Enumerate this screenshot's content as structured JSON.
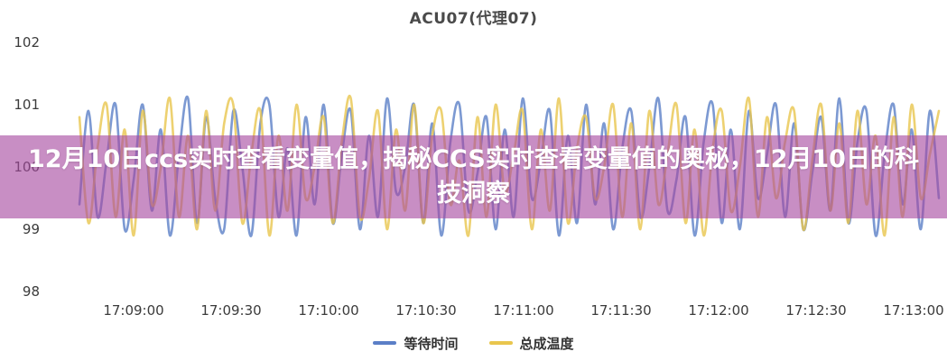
{
  "title": "ACU07(代理07)",
  "overlay": {
    "text": "12月10日ccs实时查看变量值，揭秘CCS实时查看变量值的奥秘，12月10日的科技洞察",
    "background": "rgba(167,73,160,0.62)",
    "text_color": "#ffffff"
  },
  "chart_data": {
    "type": "line",
    "title": "ACU07(代理07)",
    "xlabel": "",
    "ylabel": "",
    "x_ticks": [
      "17:09:00",
      "17:09:30",
      "17:10:00",
      "17:10:30",
      "17:11:00",
      "17:11:30",
      "17:12:00",
      "17:12:30",
      "17:13:00"
    ],
    "y_ticks": [
      "102",
      "101",
      "100",
      "99",
      "98"
    ],
    "ylim": [
      97.9,
      102.2
    ],
    "grid": false,
    "legend_position": "bottom-center",
    "series": [
      {
        "name": "等待时间",
        "color": "#5b7fc7",
        "values": [
          99.4,
          100.9,
          99.2,
          100.1,
          101.0,
          99.0,
          99.8,
          101.0,
          99.3,
          100.6,
          98.9,
          100.2,
          101.1,
          99.1,
          100.8,
          99.5,
          99.0,
          100.9,
          100.0,
          98.9,
          100.7,
          101.0,
          99.2,
          100.3,
          98.9,
          100.8,
          99.4,
          101.0,
          99.1,
          100.2,
          100.9,
          99.0,
          100.5,
          99.2,
          101.1,
          99.6,
          100.0,
          101.0,
          99.1,
          100.7,
          98.9,
          100.4,
          101.0,
          99.3,
          99.9,
          100.8,
          99.0,
          100.6,
          99.2,
          101.1,
          99.5,
          100.1,
          100.9,
          98.9,
          100.5,
          99.1,
          101.0,
          99.4,
          100.7,
          99.0,
          100.3,
          100.9,
          99.2,
          100.0,
          101.1,
          99.3,
          99.8,
          100.8,
          98.9,
          100.4,
          101.0,
          99.1,
          100.6,
          99.0,
          100.9,
          99.5,
          100.2,
          101.0,
          99.2,
          100.7,
          99.0,
          99.9,
          100.8,
          99.3,
          101.1,
          99.1,
          100.4,
          100.9,
          98.9,
          100.2,
          101.0,
          99.4,
          100.6,
          99.0,
          100.9,
          99.5
        ]
      },
      {
        "name": "总成温度",
        "color": "#e9c64d",
        "values": [
          100.8,
          99.1,
          100.3,
          101.0,
          99.2,
          100.6,
          98.9,
          100.9,
          99.4,
          100.0,
          101.1,
          99.2,
          100.5,
          99.0,
          100.9,
          99.3,
          100.7,
          101.0,
          99.1,
          100.2,
          100.9,
          98.9,
          100.5,
          99.3,
          101.0,
          99.5,
          100.0,
          100.8,
          99.1,
          100.4,
          101.1,
          99.2,
          99.8,
          100.9,
          99.0,
          100.6,
          99.3,
          101.0,
          99.1,
          100.5,
          100.9,
          99.4,
          100.1,
          98.9,
          100.8,
          99.2,
          101.0,
          99.6,
          100.2,
          100.9,
          99.0,
          100.6,
          99.3,
          101.1,
          99.1,
          100.3,
          100.8,
          99.5,
          100.0,
          101.0,
          99.2,
          100.7,
          99.0,
          100.9,
          99.4,
          100.2,
          101.0,
          99.1,
          100.6,
          98.9,
          100.3,
          100.9,
          99.3,
          100.0,
          101.1,
          99.2,
          100.8,
          99.5,
          100.4,
          100.9,
          99.0,
          100.1,
          101.0,
          99.3,
          100.7,
          99.1,
          100.9,
          99.4,
          100.5,
          98.9,
          100.8,
          99.2,
          101.0,
          99.5,
          100.2,
          100.9
        ]
      }
    ]
  }
}
